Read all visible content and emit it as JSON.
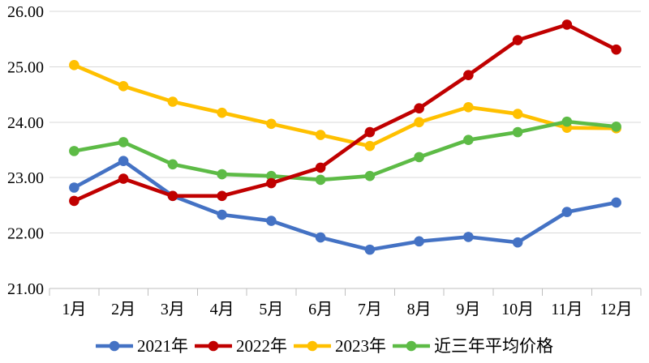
{
  "page": {
    "background": "#FFFFFF",
    "title": ""
  },
  "chart_data": {
    "type": "line",
    "title": "",
    "xlabel": "",
    "ylabel": "",
    "categories": [
      "1月",
      "2月",
      "3月",
      "4月",
      "5月",
      "6月",
      "7月",
      "8月",
      "9月",
      "10月",
      "11月",
      "12月"
    ],
    "series": [
      {
        "id": "2021",
        "name": "2021年",
        "color": "#4472C4",
        "values": [
          22.82,
          23.3,
          22.67,
          22.33,
          22.22,
          21.92,
          21.7,
          21.85,
          21.93,
          21.83,
          22.38,
          22.55
        ]
      },
      {
        "id": "2022",
        "name": "2022年",
        "color": "#C00000",
        "values": [
          22.58,
          22.98,
          22.67,
          22.67,
          22.9,
          23.18,
          23.82,
          24.25,
          24.85,
          25.48,
          25.76,
          25.31
        ]
      },
      {
        "id": "2023",
        "name": "2023年",
        "color": "#FFC000",
        "values": [
          25.03,
          24.65,
          24.37,
          24.17,
          23.97,
          23.77,
          23.57,
          24.0,
          24.27,
          24.15,
          23.9,
          23.89
        ]
      },
      {
        "id": "avg3yr",
        "name": "近三年平均价格",
        "color": "#5DBB46",
        "values": [
          23.48,
          23.64,
          23.24,
          23.06,
          23.03,
          22.96,
          23.03,
          23.37,
          23.68,
          23.82,
          24.01,
          23.92
        ]
      }
    ],
    "draw_order": [
      "2021",
      "2023",
      "avg3yr",
      "2022"
    ],
    "ylim": [
      21,
      26
    ],
    "ytick_interval": 1,
    "ytick_labels": [
      "21.00",
      "22.00",
      "23.00",
      "24.00",
      "25.00",
      "26.00"
    ],
    "grid": "horizontal-only",
    "legend_position": "bottom",
    "colors": {
      "gridline": "#D9D9D9",
      "axis_line": "#BFBFBF",
      "tick": "#BFBFBF",
      "label_text": "#000000"
    }
  }
}
